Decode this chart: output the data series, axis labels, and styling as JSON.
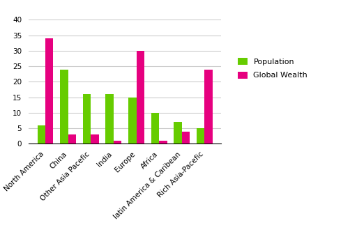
{
  "categories": [
    "North America",
    "China",
    "Other Asia Pacefic",
    "India",
    "Europe",
    "Africa",
    "latin America & Caribean",
    "Rich Asia-Pacefic"
  ],
  "population": [
    6,
    24,
    16,
    16,
    15,
    10,
    7,
    5
  ],
  "global_wealth": [
    34,
    3,
    3,
    1,
    30,
    1,
    4,
    24
  ],
  "pop_color": "#66cc00",
  "wealth_color": "#e6007f",
  "ylim": [
    0,
    40
  ],
  "yticks": [
    0,
    5,
    10,
    15,
    20,
    25,
    30,
    35,
    40
  ],
  "legend_pop": "Population",
  "legend_wealth": "Global Wealth",
  "bg_color": "#ffffff",
  "grid_color": "#cccccc",
  "bar_width": 0.35,
  "tick_fontsize": 7.5,
  "legend_fontsize": 8
}
